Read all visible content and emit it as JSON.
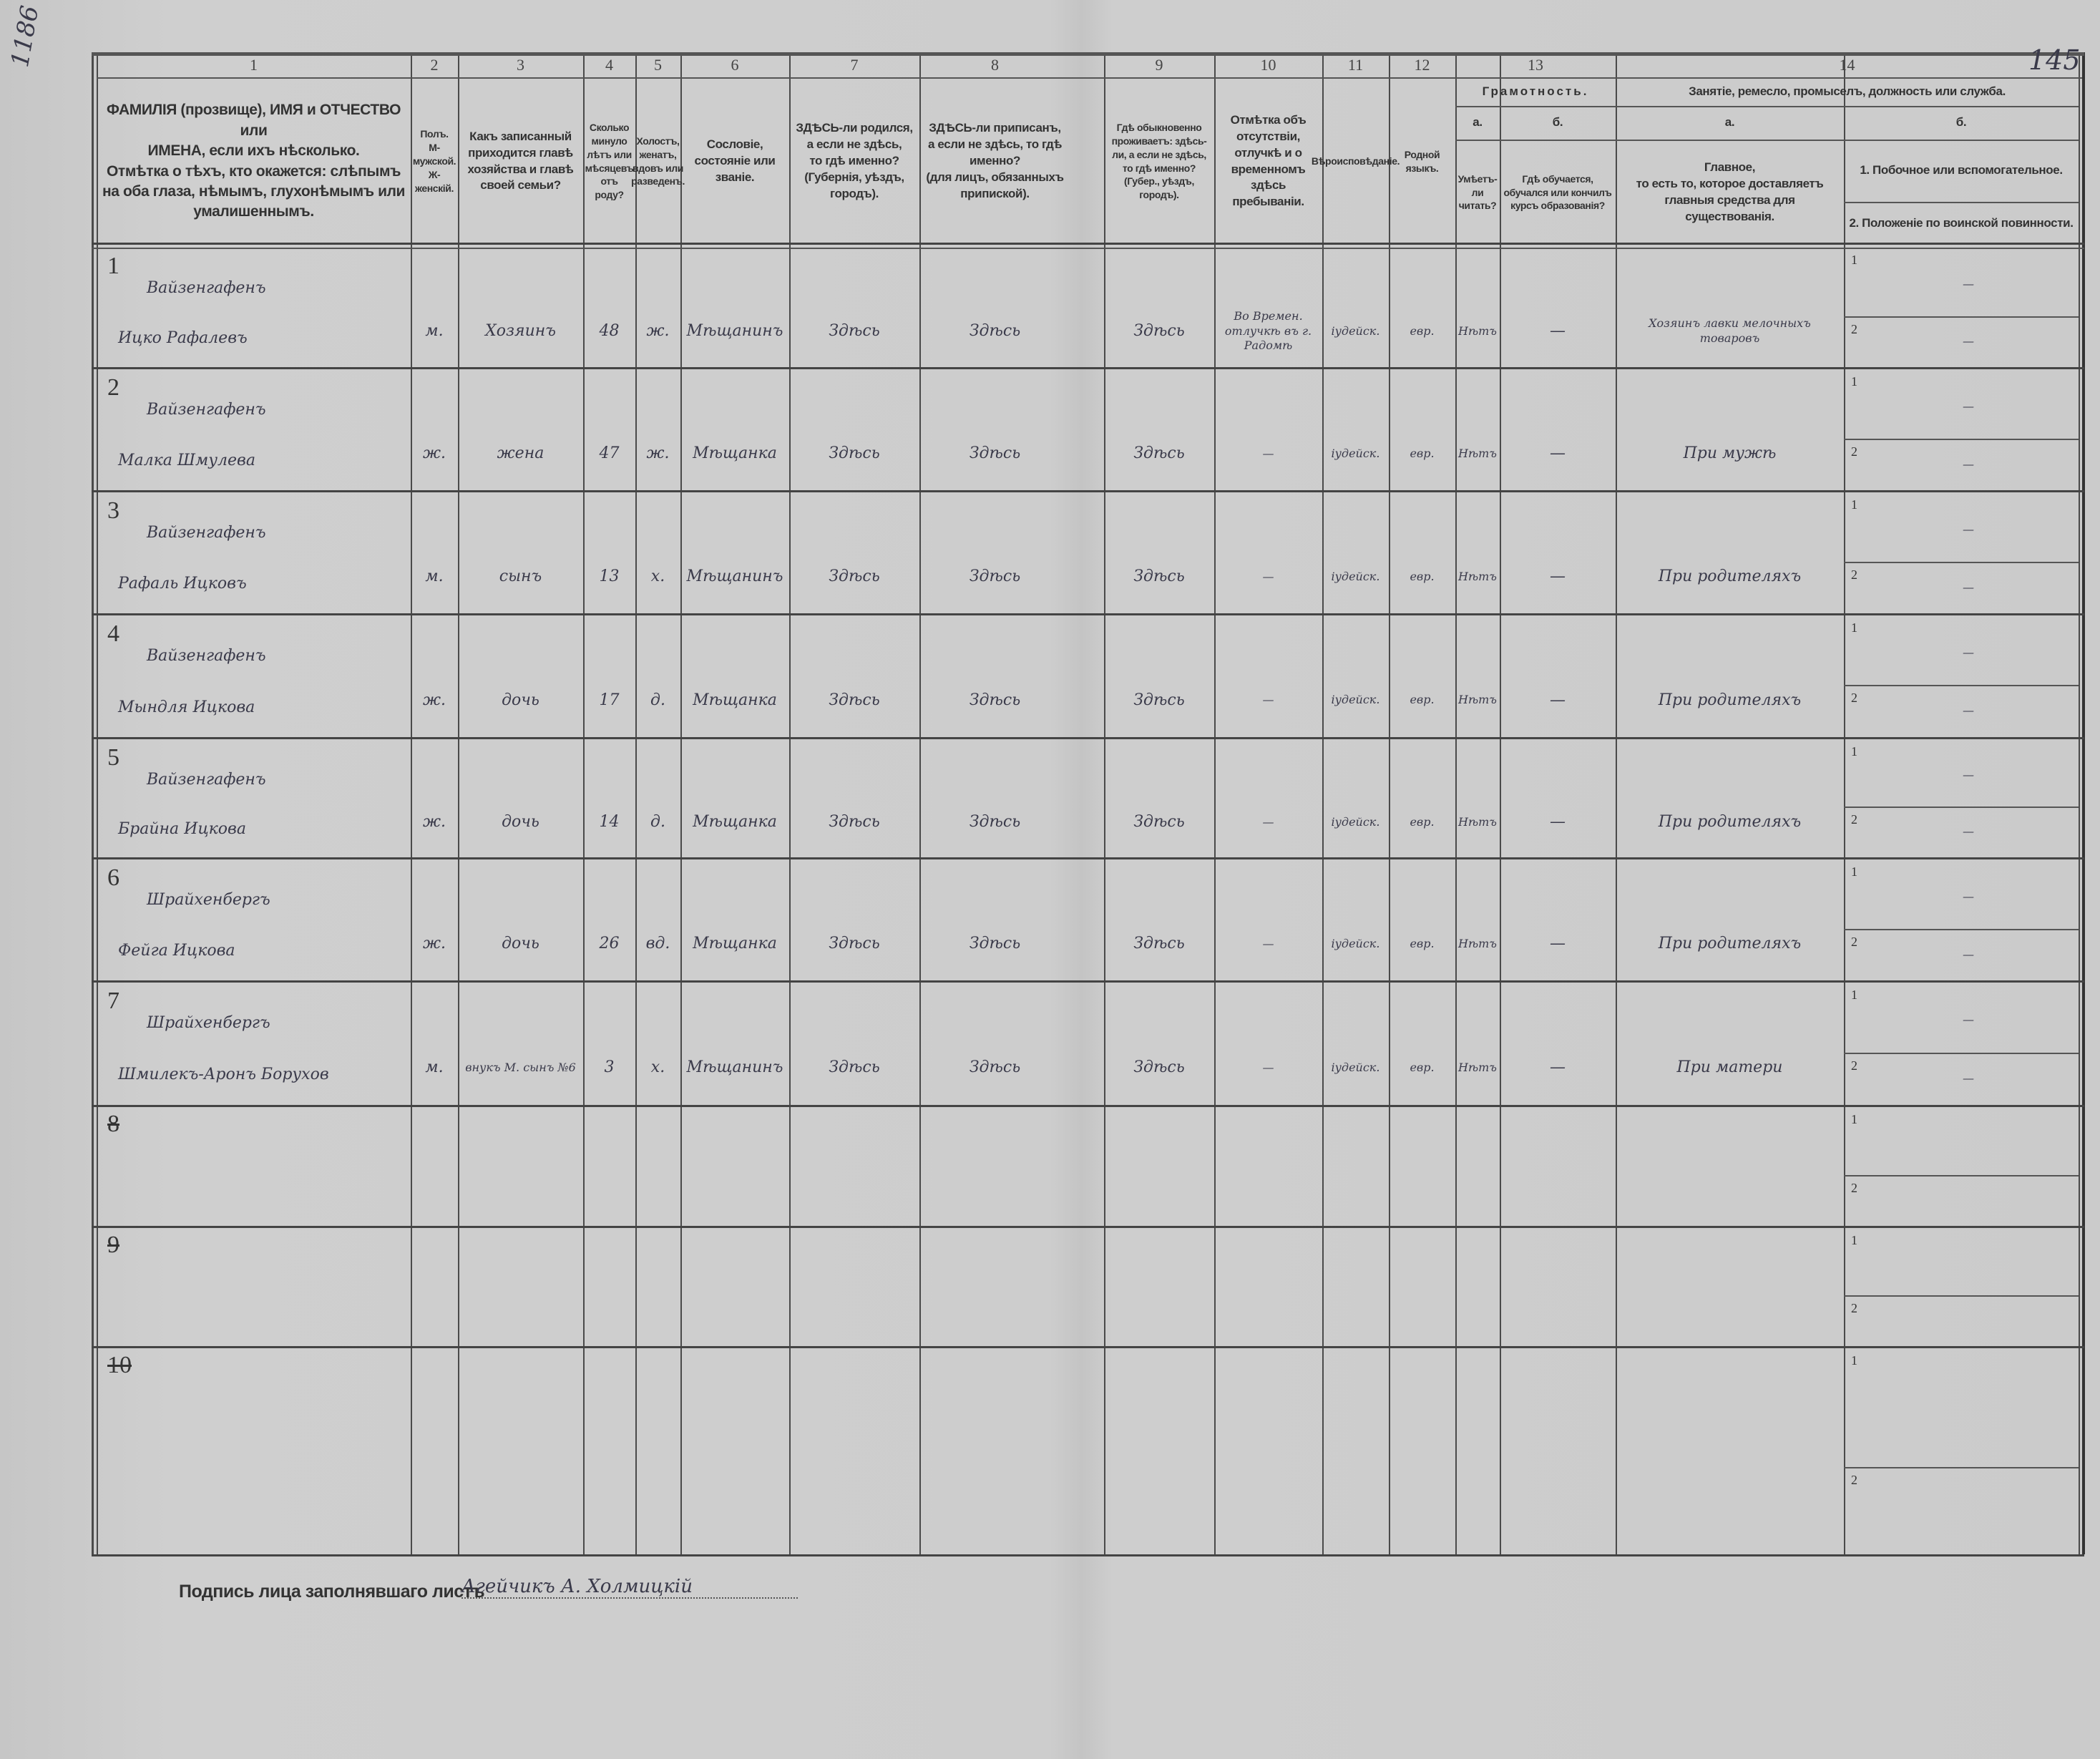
{
  "page_marks": {
    "archive_number": "1186",
    "sheet_number": "145"
  },
  "header": {
    "col_numbers": [
      "1",
      "2",
      "3",
      "4",
      "5",
      "6",
      "7",
      "8",
      "9",
      "10",
      "11",
      "12",
      "13",
      "14"
    ],
    "c1": "ФАМИЛІЯ (прозвище), ИМЯ и ОТЧЕСТВО или\nИМЕНА, если ихъ нѣсколько.\nОтмѣтка о тѣхъ, кто окажется: слѣпымъ\nна оба глаза, нѣмымъ, глухонѣмымъ или\nумалишеннымъ.",
    "c2": "Полъ.\nМ-мужской.\nЖ-женскій.",
    "c3": "Какъ записанный приходится главѣ хозяйства и главѣ своей семьи?",
    "c4": "Сколько минуло лѣтъ или мѣсяцевъ отъ роду?",
    "c5": "Холостъ, женатъ, вдовъ или разведенъ.",
    "c6": "Сословіе, состояніе или званіе.",
    "c7": "ЗДѢСЬ-ли родился,\nа если не здѣсь,\nто гдѣ именно?\n(Губернія, уѣздъ, городъ).",
    "c8": "ЗДѢСЬ-ли приписанъ,\nа если не здѣсь, то гдѣ именно?\n(для лицъ, обязанныхъ припиской).",
    "c9": "Гдѣ обыкновенно проживаетъ: здѣсь-ли, а если не здѣсь, то гдѣ именно?\n(Губер., уѣздъ, городъ).",
    "c10": "Отмѣтка объ отсутствіи, отлучкѣ и о временномъ здѣсь пребываніи.",
    "c11": "Вѣроисповѣданіе.",
    "c12": "Родной языкъ.",
    "c13": {
      "title": "Грамотность.",
      "a": "а.",
      "b": "б.",
      "a_text": "Умѣетъ-ли читать?",
      "b_text": "Гдѣ обучается, обучался или кончилъ курсъ образованія?"
    },
    "c14": {
      "title": "Занятіе, ремесло, промыселъ, должность или служба.",
      "a": "а.",
      "b": "б.",
      "a_text": "Главное,\nто есть то, которое доставляетъ главныя средства для существованія.",
      "b1_text": "1. Побочное или вспомогательное.",
      "b2_text": "2. Положеніе по воинской повинности."
    }
  },
  "rows": [
    {
      "n": "1",
      "surname": "Вайзенгафенъ",
      "name": "Ицко Рафалевъ",
      "sex": "м.",
      "relation": "Хозяинъ",
      "age": "48",
      "marital": "ж.",
      "estate": "Мѣщанинъ",
      "born": "Здѣсь",
      "registered": "Здѣсь",
      "residence": "Здѣсь",
      "absence": "Во Времен. отлучкѣ въ г. Радомѣ",
      "religion": "іудейск.",
      "language": "евр.",
      "literate": "Нѣтъ",
      "education": "—",
      "occupation": "Хозяинъ лавки мелочныхъ товаровъ",
      "side": "—",
      "military": "—"
    },
    {
      "n": "2",
      "surname": "Вайзенгафенъ",
      "name": "Малка Шмулева",
      "sex": "ж.",
      "relation": "жена",
      "age": "47",
      "marital": "ж.",
      "estate": "Мѣщанка",
      "born": "Здѣсь",
      "registered": "Здѣсь",
      "residence": "Здѣсь",
      "absence": "—",
      "religion": "іудейск.",
      "language": "евр.",
      "literate": "Нѣтъ",
      "education": "—",
      "occupation": "При мужѣ",
      "side": "—",
      "military": "—"
    },
    {
      "n": "3",
      "surname": "Вайзенгафенъ",
      "name": "Рафаль Ицковъ",
      "sex": "м.",
      "relation": "сынъ",
      "age": "13",
      "marital": "х.",
      "estate": "Мѣщанинъ",
      "born": "Здѣсь",
      "registered": "Здѣсь",
      "residence": "Здѣсь",
      "absence": "—",
      "religion": "іудейск.",
      "language": "евр.",
      "literate": "Нѣтъ",
      "education": "—",
      "occupation": "При родителяхъ",
      "side": "—",
      "military": "—"
    },
    {
      "n": "4",
      "surname": "Вайзенгафенъ",
      "name": "Мындля Ицкова",
      "sex": "ж.",
      "relation": "дочь",
      "age": "17",
      "marital": "д.",
      "estate": "Мѣщанка",
      "born": "Здѣсь",
      "registered": "Здѣсь",
      "residence": "Здѣсь",
      "absence": "—",
      "religion": "іудейск.",
      "language": "евр.",
      "literate": "Нѣтъ",
      "education": "—",
      "occupation": "При родителяхъ",
      "side": "—",
      "military": "—"
    },
    {
      "n": "5",
      "surname": "Вайзенгафенъ",
      "name": "Брайна Ицкова",
      "sex": "ж.",
      "relation": "дочь",
      "age": "14",
      "marital": "д.",
      "estate": "Мѣщанка",
      "born": "Здѣсь",
      "registered": "Здѣсь",
      "residence": "Здѣсь",
      "absence": "—",
      "religion": "іудейск.",
      "language": "евр.",
      "literate": "Нѣтъ",
      "education": "—",
      "occupation": "При родителяхъ",
      "side": "—",
      "military": "—"
    },
    {
      "n": "6",
      "surname": "Шрайхенбергъ",
      "name": "Фейга Ицкова",
      "sex": "ж.",
      "relation": "дочь",
      "age": "26",
      "marital": "вд.",
      "estate": "Мѣщанка",
      "born": "Здѣсь",
      "registered": "Здѣсь",
      "residence": "Здѣсь",
      "absence": "—",
      "religion": "іудейск.",
      "language": "евр.",
      "literate": "Нѣтъ",
      "education": "—",
      "occupation": "При родителяхъ",
      "side": "—",
      "military": "—"
    },
    {
      "n": "7",
      "surname": "Шрайхенбергъ",
      "name": "Шмилекъ-Аронъ Борухов",
      "sex": "м.",
      "relation": "внукъ М. сынъ №6",
      "age": "3",
      "marital": "х.",
      "estate": "Мѣщанинъ",
      "born": "Здѣсь",
      "registered": "Здѣсь",
      "residence": "Здѣсь",
      "absence": "—",
      "religion": "іудейск.",
      "language": "евр.",
      "literate": "Нѣтъ",
      "education": "—",
      "occupation": "При матери",
      "side": "—",
      "military": "—"
    }
  ],
  "empty_rows": [
    "8",
    "9",
    "10"
  ],
  "sub_labels": [
    "1",
    "2"
  ],
  "signature": {
    "label": "Подпись лица заполнявшаго листъ",
    "value": "Агейчикъ А. Холмицкій"
  }
}
